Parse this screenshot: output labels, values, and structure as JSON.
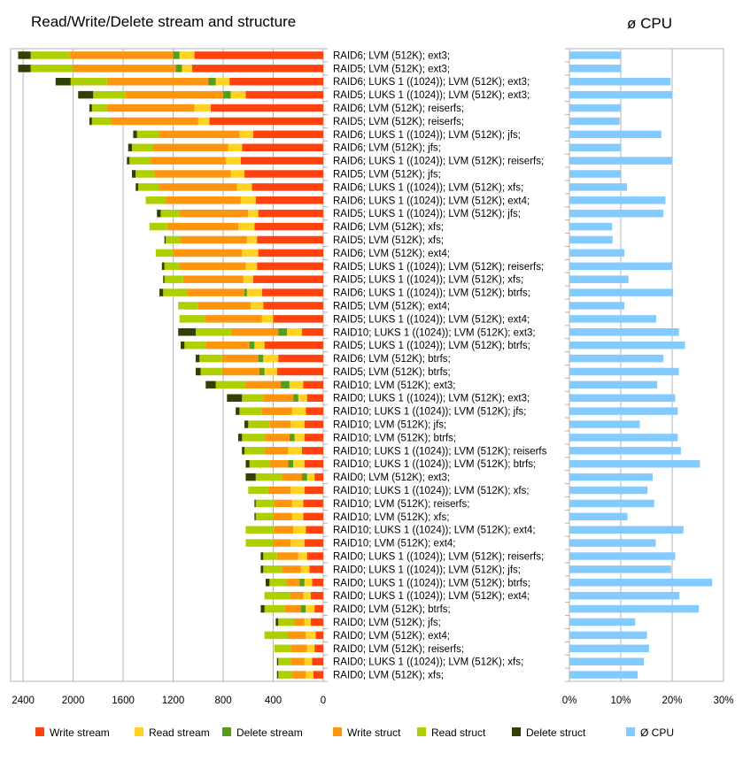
{
  "chart_data": [
    {
      "type": "bar",
      "orientation": "horizontal-stacked",
      "title": "Read/Write/Delete stream and structure",
      "xlabel": "",
      "ylabel": "",
      "xlim": [
        0,
        2500
      ],
      "x_direction": "reversed",
      "grid": true,
      "legend_position": "bottom",
      "xticks": [
        "2400",
        "2000",
        "1600",
        "1200",
        "800",
        "400",
        "0"
      ],
      "categories": [
        "RAID6; LVM (512K); ext3;",
        "RAID5; LVM (512K); ext3;",
        "RAID6; LUKS 1 ((1024)); LVM (512K); ext3;",
        "RAID5; LUKS 1 ((1024)); LVM (512K); ext3;",
        "RAID6; LVM (512K); reiserfs;",
        "RAID5; LVM (512K); reiserfs;",
        "RAID6; LUKS 1 ((1024)); LVM (512K); jfs;",
        "RAID6; LVM (512K); jfs;",
        "RAID6; LUKS 1 ((1024)); LVM (512K); reiserfs;",
        "RAID5; LVM (512K); jfs;",
        "RAID6; LUKS 1 ((1024)); LVM (512K); xfs;",
        "RAID6; LUKS 1 ((1024)); LVM (512K); ext4;",
        "RAID5; LUKS 1 ((1024)); LVM (512K); jfs;",
        "RAID6; LVM (512K); xfs;",
        "RAID5; LVM (512K); xfs;",
        "RAID6; LVM (512K); ext4;",
        "RAID5; LUKS 1 ((1024)); LVM (512K); reiserfs;",
        "RAID5; LUKS 1 ((1024)); LVM (512K); xfs;",
        "RAID6; LUKS 1 ((1024)); LVM (512K); btrfs;",
        "RAID5; LVM (512K); ext4;",
        "RAID5; LUKS 1 ((1024)); LVM (512K); ext4;",
        "RAID10; LUKS 1 ((1024)); LVM (512K); ext3;",
        "RAID5; LUKS 1 ((1024)); LVM (512K); btrfs;",
        "RAID6; LVM (512K); btrfs;",
        "RAID5; LVM (512K); btrfs;",
        "RAID10; LVM (512K); ext3;",
        "RAID0; LUKS 1 ((1024)); LVM (512K); ext3;",
        "RAID10; LUKS 1 ((1024)); LVM (512K); jfs;",
        "RAID10; LVM (512K); jfs;",
        "RAID10; LVM (512K); btrfs;",
        "RAID10; LUKS 1 ((1024)); LVM (512K); reiserfs",
        "RAID10; LUKS 1 ((1024)); LVM (512K); btrfs;",
        "RAID0; LVM (512K); ext3;",
        "RAID10; LUKS 1 ((1024)); LVM (512K); xfs;",
        "RAID10; LVM (512K); reiserfs;",
        "RAID10; LVM (512K); xfs;",
        "RAID10; LUKS 1 ((1024)); LVM (512K); ext4;",
        "RAID10; LVM (512K); ext4;",
        "RAID0; LUKS 1 ((1024)); LVM (512K); reiserfs;",
        "RAID0; LUKS 1 ((1024)); LVM (512K); jfs;",
        "RAID0; LUKS 1 ((1024)); LVM (512K); btrfs;",
        "RAID0; LUKS 1 ((1024)); LVM (512K); ext4;",
        "RAID0; LVM (512K); btrfs;",
        "RAID0; LVM (512K); jfs;",
        "RAID0; LVM (512K); ext4;",
        "RAID0; LVM (512K); reiserfs;",
        "RAID0; LUKS 1 ((1024)); LVM (512K); xfs;",
        "RAID0; LVM (512K); xfs;"
      ],
      "series": [
        {
          "name": "Write stream",
          "color": "#ff420e",
          "values": [
            1030,
            1050,
            750,
            620,
            900,
            910,
            560,
            650,
            660,
            630,
            570,
            540,
            520,
            550,
            530,
            520,
            530,
            560,
            490,
            480,
            400,
            170,
            470,
            360,
            370,
            160,
            130,
            140,
            150,
            150,
            170,
            150,
            70,
            150,
            160,
            160,
            140,
            150,
            130,
            110,
            90,
            100,
            70,
            100,
            60,
            70,
            90,
            80
          ]
        },
        {
          "name": "Read stream",
          "color": "#ffd320",
          "values": [
            120,
            80,
            110,
            120,
            130,
            90,
            110,
            110,
            120,
            110,
            120,
            120,
            80,
            130,
            80,
            130,
            90,
            80,
            120,
            100,
            90,
            120,
            80,
            120,
            100,
            110,
            70,
            110,
            110,
            80,
            110,
            90,
            60,
            110,
            90,
            90,
            100,
            110,
            70,
            70,
            60,
            60,
            70,
            50,
            80,
            60,
            60,
            60
          ]
        },
        {
          "name": "Delete stream",
          "color": "#579d1c",
          "values": [
            50,
            50,
            60,
            60,
            0,
            0,
            0,
            0,
            0,
            0,
            0,
            0,
            0,
            0,
            0,
            0,
            0,
            0,
            20,
            0,
            0,
            70,
            40,
            40,
            40,
            70,
            40,
            0,
            0,
            40,
            0,
            40,
            40,
            0,
            0,
            0,
            0,
            0,
            0,
            0,
            40,
            0,
            40,
            0,
            0,
            0,
            0,
            0
          ]
        },
        {
          "name": "Write struct",
          "color": "#ff950e",
          "values": [
            830,
            820,
            810,
            780,
            700,
            700,
            640,
            600,
            600,
            610,
            620,
            600,
            550,
            560,
            530,
            550,
            530,
            480,
            460,
            420,
            460,
            370,
            350,
            290,
            300,
            280,
            240,
            240,
            170,
            190,
            190,
            150,
            160,
            180,
            140,
            150,
            150,
            140,
            170,
            150,
            100,
            110,
            130,
            80,
            140,
            130,
            110,
            110
          ]
        },
        {
          "name": "Read struct",
          "color": "#aecf00",
          "values": [
            310,
            340,
            290,
            260,
            120,
            150,
            180,
            170,
            170,
            150,
            170,
            160,
            150,
            150,
            120,
            140,
            120,
            150,
            190,
            160,
            200,
            290,
            170,
            180,
            170,
            240,
            170,
            180,
            170,
            190,
            160,
            160,
            210,
            160,
            150,
            140,
            230,
            220,
            110,
            150,
            140,
            200,
            160,
            130,
            190,
            130,
            100,
            110
          ]
        },
        {
          "name": "Delete struct",
          "color": "#314004",
          "values": [
            100,
            100,
            120,
            120,
            20,
            20,
            30,
            30,
            20,
            30,
            20,
            0,
            30,
            0,
            10,
            0,
            20,
            10,
            30,
            0,
            0,
            140,
            30,
            30,
            40,
            80,
            120,
            30,
            30,
            30,
            20,
            30,
            80,
            0,
            10,
            10,
            0,
            0,
            20,
            20,
            30,
            0,
            30,
            20,
            0,
            0,
            10,
            10
          ]
        }
      ]
    },
    {
      "type": "bar",
      "orientation": "horizontal",
      "title": "ø CPU",
      "xlim": [
        0,
        30
      ],
      "xticks": [
        "0%",
        "10%",
        "20%",
        "30%"
      ],
      "grid": true,
      "legend_position": "bottom",
      "series": [
        {
          "name": "Ø CPU",
          "color": "#83caff",
          "values": [
            10,
            10,
            19.7,
            20,
            10,
            9.8,
            17.9,
            10,
            20,
            9.9,
            11.2,
            18.7,
            18.3,
            8.3,
            8.4,
            10.7,
            20,
            11.5,
            20.2,
            10.7,
            16.9,
            21.3,
            22.5,
            18.3,
            21.3,
            17.1,
            20.6,
            21.1,
            13.7,
            21.1,
            21.7,
            25.4,
            16.2,
            15.2,
            16.5,
            11.3,
            22.2,
            16.8,
            20.6,
            19.8,
            27.8,
            21.4,
            25.2,
            12.8,
            15.1,
            15.5,
            14.5,
            13.3
          ]
        }
      ]
    }
  ]
}
